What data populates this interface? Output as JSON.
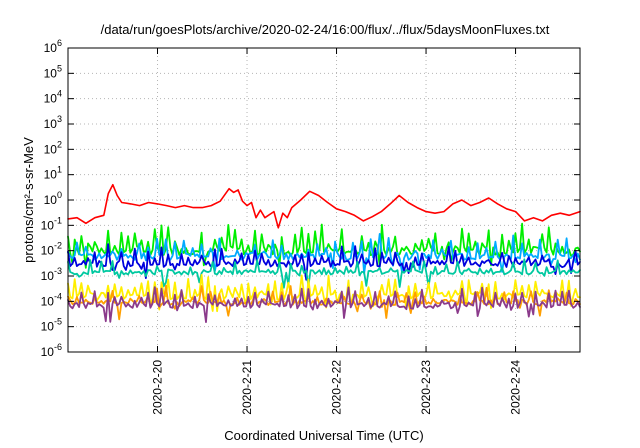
{
  "chart_data": {
    "type": "line",
    "title": "/data/run/goesPlots/archive/2020-02-24/16:00/flux/../flux/5daysMoonFluxes.txt",
    "xlabel": "Coordinated Universal Time (UTC)",
    "ylabel": "protons/cm²-s-sr-MeV",
    "yscale": "log",
    "ylim": [
      1e-06,
      1000000.0
    ],
    "xlim": [
      -1.0,
      4.72
    ],
    "grid": true,
    "y_ticks": [
      {
        "value": 1e-06,
        "base": "10",
        "exp": "-6"
      },
      {
        "value": 1e-05,
        "base": "10",
        "exp": "-5"
      },
      {
        "value": 0.0001,
        "base": "10",
        "exp": "-4"
      },
      {
        "value": 0.001,
        "base": "10",
        "exp": "-3"
      },
      {
        "value": 0.01,
        "base": "10",
        "exp": "-2"
      },
      {
        "value": 0.1,
        "base": "10",
        "exp": "-1"
      },
      {
        "value": 1,
        "base": "10",
        "exp": "0"
      },
      {
        "value": 10,
        "base": "10",
        "exp": "1"
      },
      {
        "value": 100,
        "base": "10",
        "exp": "2"
      },
      {
        "value": 1000,
        "base": "10",
        "exp": "3"
      },
      {
        "value": 10000,
        "base": "10",
        "exp": "4"
      },
      {
        "value": 100000,
        "base": "10",
        "exp": "5"
      },
      {
        "value": 1000000,
        "base": "10",
        "exp": "6"
      }
    ],
    "x_ticks": [
      {
        "value": 0,
        "label": "2020-2-20"
      },
      {
        "value": 1,
        "label": "2020-2-21"
      },
      {
        "value": 2,
        "label": "2020-2-22"
      },
      {
        "value": 3,
        "label": "2020-2-23"
      },
      {
        "value": 4,
        "label": "2020-2-24"
      }
    ],
    "series": [
      {
        "color": "#ff0000",
        "values": [
          [
            -1.0,
            0.18
          ],
          [
            -0.9,
            0.2
          ],
          [
            -0.8,
            0.12
          ],
          [
            -0.7,
            0.2
          ],
          [
            -0.6,
            0.25
          ],
          [
            -0.55,
            1.8
          ],
          [
            -0.5,
            4.0
          ],
          [
            -0.45,
            1.5
          ],
          [
            -0.4,
            0.8
          ],
          [
            -0.3,
            0.7
          ],
          [
            -0.2,
            0.6
          ],
          [
            -0.1,
            0.8
          ],
          [
            0,
            0.7
          ],
          [
            0.1,
            0.6
          ],
          [
            0.2,
            0.5
          ],
          [
            0.3,
            0.6
          ],
          [
            0.4,
            0.5
          ],
          [
            0.5,
            0.5
          ],
          [
            0.6,
            0.6
          ],
          [
            0.7,
            0.9
          ],
          [
            0.8,
            2.8
          ],
          [
            0.85,
            2.0
          ],
          [
            0.9,
            2.5
          ],
          [
            0.95,
            0.9
          ],
          [
            1.0,
            0.6
          ],
          [
            1.05,
            0.8
          ],
          [
            1.1,
            0.2
          ],
          [
            1.15,
            0.4
          ],
          [
            1.2,
            0.2
          ],
          [
            1.3,
            0.35
          ],
          [
            1.35,
            0.08
          ],
          [
            1.4,
            0.3
          ],
          [
            1.45,
            0.2
          ],
          [
            1.5,
            0.5
          ],
          [
            1.6,
            1.0
          ],
          [
            1.7,
            2.2
          ],
          [
            1.8,
            1.5
          ],
          [
            1.9,
            0.8
          ],
          [
            2.0,
            0.45
          ],
          [
            2.1,
            0.35
          ],
          [
            2.2,
            0.25
          ],
          [
            2.3,
            0.15
          ],
          [
            2.4,
            0.22
          ],
          [
            2.5,
            0.35
          ],
          [
            2.6,
            0.7
          ],
          [
            2.7,
            1.5
          ],
          [
            2.8,
            0.8
          ],
          [
            2.9,
            0.5
          ],
          [
            3.0,
            0.35
          ],
          [
            3.1,
            0.3
          ],
          [
            3.2,
            0.35
          ],
          [
            3.3,
            0.7
          ],
          [
            3.4,
            1.0
          ],
          [
            3.5,
            0.6
          ],
          [
            3.6,
            0.8
          ],
          [
            3.7,
            1.2
          ],
          [
            3.8,
            0.7
          ],
          [
            3.9,
            0.45
          ],
          [
            4.0,
            0.35
          ],
          [
            4.1,
            0.15
          ],
          [
            4.2,
            0.2
          ],
          [
            4.3,
            0.15
          ],
          [
            4.4,
            0.25
          ],
          [
            4.5,
            0.3
          ],
          [
            4.6,
            0.25
          ],
          [
            4.72,
            0.35
          ]
        ]
      },
      {
        "color": "#00ee00",
        "base": 0.01,
        "jitter": 1.0,
        "spike_every": 3
      },
      {
        "color": "#00aaff",
        "base": 0.006,
        "jitter": 0.8,
        "spike_every": 4
      },
      {
        "color": "#0000dd",
        "base": 0.003,
        "jitter": 0.7,
        "spike_every": 3
      },
      {
        "color": "#00c8a0",
        "base": 0.0014,
        "jitter": 0.5,
        "spike_every": 5
      },
      {
        "color": "#ffee00",
        "base": 0.00016,
        "jitter": 0.8,
        "spike_every": 3
      },
      {
        "color": "#ff9f00",
        "base": 9e-05,
        "jitter": 0.6,
        "spike_every": 4
      },
      {
        "color": "#8b3a8b",
        "base": 7e-05,
        "jitter": 0.7,
        "spike_every": 3
      }
    ]
  }
}
